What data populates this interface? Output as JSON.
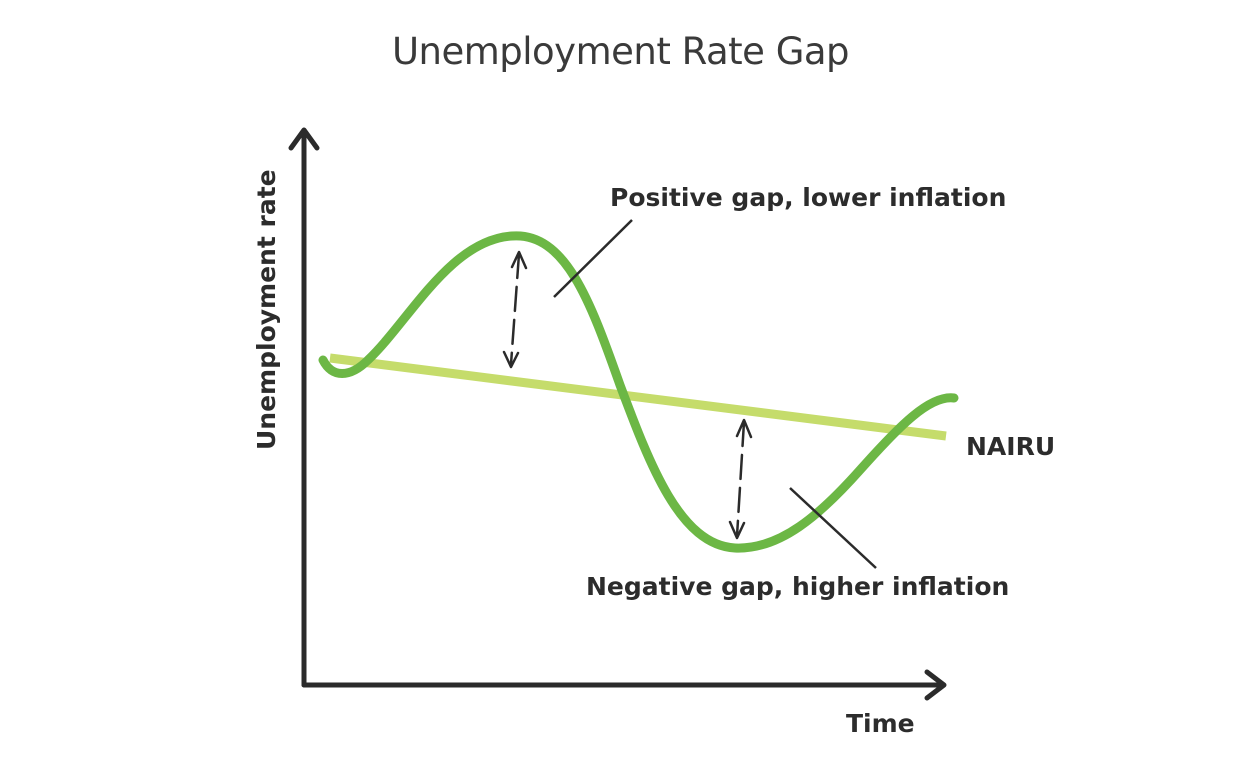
{
  "title": "Unemployment Rate Gap",
  "axes": {
    "y_label": "Unemployment rate",
    "x_label": "Time"
  },
  "lines": {
    "nairu_label": "NAIRU"
  },
  "annotations": {
    "positive_gap": "Positive gap, lower inflation",
    "negative_gap": "Negative gap, higher inflation"
  },
  "colors": {
    "unemployment_curve": "#6cb745",
    "nairu_line": "#c5dc6b",
    "axis": "#2b2b2b",
    "text": "#2c2c2c"
  }
}
